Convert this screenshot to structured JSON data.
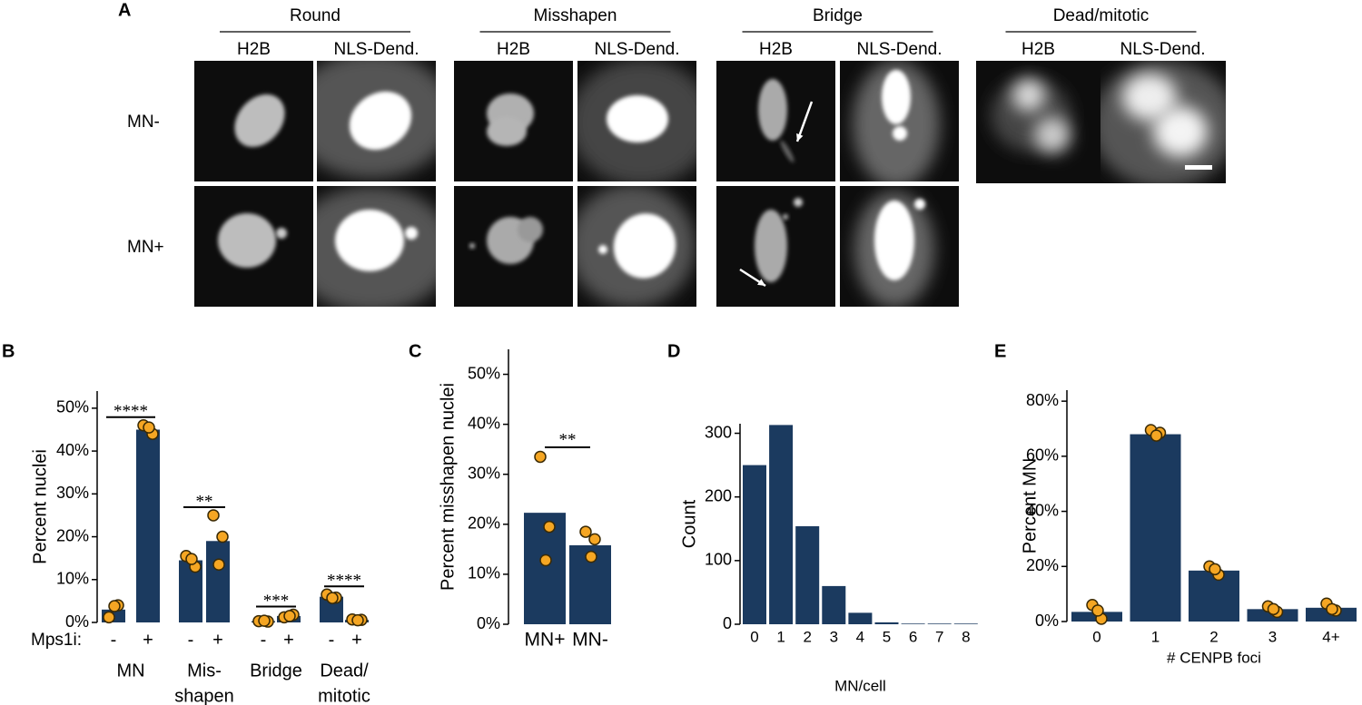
{
  "panel_a": {
    "label": "A",
    "groups": [
      "Round",
      "Misshapen",
      "Bridge",
      "Dead/mitotic"
    ],
    "channels": [
      "H2B",
      "NLS-Dend."
    ],
    "rows": [
      "MN-",
      "MN+"
    ]
  },
  "chart_data": [
    {
      "type": "bar",
      "label": "B",
      "ylabel": "Percent nuclei",
      "treatment_label": "Mps1i:",
      "categories": [
        [
          "MN"
        ],
        [
          "Mis-",
          "shapen"
        ],
        [
          "Bridge"
        ],
        [
          "Dead/",
          "mitotic"
        ]
      ],
      "series": [
        {
          "name": "-",
          "color": "#1b3a5f",
          "values": [
            3,
            14.5,
            0.3,
            6
          ],
          "points": [
            [
              1.2,
              4,
              3.8
            ],
            [
              15.5,
              13,
              14.8
            ],
            [
              0.3,
              0.2,
              0.4
            ],
            [
              6.5,
              5.8,
              5.7
            ]
          ]
        },
        {
          "name": "+",
          "color": "#1b3a5f",
          "values": [
            45,
            19,
            1.5,
            0.6
          ],
          "points": [
            [
              46,
              44,
              45.5
            ],
            [
              25,
              20,
              13.5
            ],
            [
              1.2,
              1.8,
              1.5
            ],
            [
              0.7,
              0.6,
              0.5
            ]
          ]
        }
      ],
      "point_color": "#f5a623",
      "significance": [
        "****",
        "**",
        "***",
        "****"
      ],
      "ylim": [
        0,
        54
      ],
      "yticks": [
        {
          "value": 0,
          "label": "0%"
        },
        {
          "value": 10,
          "label": "10%"
        },
        {
          "value": 20,
          "label": "20%"
        },
        {
          "value": 30,
          "label": "30%"
        },
        {
          "value": 40,
          "label": "40%"
        },
        {
          "value": 50,
          "label": "50%"
        }
      ]
    },
    {
      "type": "bar",
      "label": "C",
      "ylabel": "Percent misshapen nuclei",
      "categories": [
        "MN+",
        "MN-"
      ],
      "values": [
        22.3,
        15.8
      ],
      "color": "#1b3a5f",
      "points": [
        [
          33.5,
          19.5,
          12.8
        ],
        [
          18.5,
          17,
          13.5
        ]
      ],
      "point_color": "#f5a623",
      "significance": "**",
      "ylim": [
        0,
        55
      ],
      "yticks": [
        {
          "value": 0,
          "label": "0%"
        },
        {
          "value": 10,
          "label": "10%"
        },
        {
          "value": 20,
          "label": "20%"
        },
        {
          "value": 30,
          "label": "30%"
        },
        {
          "value": 40,
          "label": "40%"
        },
        {
          "value": 50,
          "label": "50%"
        }
      ]
    },
    {
      "type": "bar",
      "label": "D",
      "ylabel": "Count",
      "xlabel": "MN/cell",
      "categories": [
        "0",
        "1",
        "2",
        "3",
        "4",
        "5",
        "6",
        "7",
        "8"
      ],
      "values": [
        250,
        313,
        154,
        60,
        18,
        3,
        1,
        1,
        1
      ],
      "color": "#1b3a5f",
      "ylim": [
        0,
        315
      ],
      "yticks": [
        0,
        100,
        200,
        300
      ]
    },
    {
      "type": "bar",
      "label": "E",
      "ylabel": "Percent MN",
      "xlabel": "# CENPB foci",
      "categories": [
        "0",
        "1",
        "2",
        "3",
        "4+"
      ],
      "values": [
        3.5,
        68,
        18.5,
        4.5,
        5
      ],
      "color": "#1b3a5f",
      "points": [
        [
          6,
          1,
          4
        ],
        [
          69.5,
          68.5,
          67.5
        ],
        [
          20,
          17,
          19
        ],
        [
          5.5,
          3.5,
          4.5
        ],
        [
          6.5,
          4,
          4.5
        ]
      ],
      "point_color": "#f5a623",
      "ylim": [
        0,
        84
      ],
      "yticks": [
        {
          "value": 0,
          "label": "0%"
        },
        {
          "value": 20,
          "label": "20%"
        },
        {
          "value": 40,
          "label": "40%"
        },
        {
          "value": 60,
          "label": "60%"
        },
        {
          "value": 80,
          "label": "80%"
        }
      ]
    }
  ]
}
